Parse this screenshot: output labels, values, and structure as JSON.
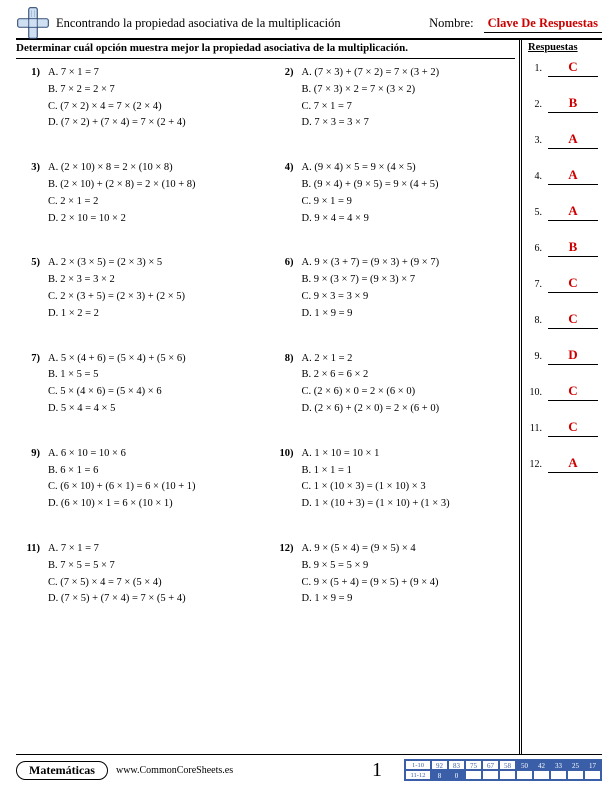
{
  "header": {
    "title": "Encontrando la propiedad asociativa de la multiplicación",
    "name_label": "Nombre:",
    "answer_key": "Clave De Respuestas"
  },
  "instruction": "Determinar cuál opción muestra mejor la propiedad asociativa de la multiplicación.",
  "sidebar_title": "Respuestas",
  "questions": [
    {
      "num": "1)",
      "opts": [
        "A. 7 × 1 = 7",
        "B. 7 × 2 = 2 × 7",
        "C. (7 × 2) × 4 = 7 × (2 × 4)",
        "D. (7 × 2) + (7 × 4) = 7 × (2 + 4)"
      ]
    },
    {
      "num": "2)",
      "opts": [
        "A. (7 × 3) + (7 × 2) = 7 × (3 + 2)",
        "B. (7 × 3) × 2 = 7 × (3 × 2)",
        "C. 7 × 1 = 7",
        "D. 7 × 3 = 3 × 7"
      ]
    },
    {
      "num": "3)",
      "opts": [
        "A. (2 × 10) × 8 = 2 × (10 × 8)",
        "B. (2 × 10) + (2 × 8) = 2 × (10 + 8)",
        "C. 2 × 1 = 2",
        "D. 2 × 10 = 10 × 2"
      ]
    },
    {
      "num": "4)",
      "opts": [
        "A. (9 × 4) × 5 = 9 × (4 × 5)",
        "B. (9 × 4) + (9 × 5) = 9 × (4 + 5)",
        "C. 9 × 1 = 9",
        "D. 9 × 4 = 4 × 9"
      ]
    },
    {
      "num": "5)",
      "opts": [
        "A. 2 × (3 × 5) = (2 × 3) × 5",
        "B. 2 × 3 = 3 × 2",
        "C. 2 × (3 + 5) = (2 × 3) + (2 × 5)",
        "D. 1 × 2 = 2"
      ]
    },
    {
      "num": "6)",
      "opts": [
        "A. 9 × (3 + 7) = (9 × 3) + (9 × 7)",
        "B. 9 × (3 × 7) = (9 × 3) × 7",
        "C. 9 × 3 = 3 × 9",
        "D. 1 × 9 = 9"
      ]
    },
    {
      "num": "7)",
      "opts": [
        "A. 5 × (4 + 6) = (5 × 4) + (5 × 6)",
        "B. 1 × 5 = 5",
        "C. 5 × (4 × 6) = (5 × 4) × 6",
        "D. 5 × 4 = 4 × 5"
      ]
    },
    {
      "num": "8)",
      "opts": [
        "A. 2 × 1 = 2",
        "B. 2 × 6 = 6 × 2",
        "C. (2 × 6) × 0 = 2 × (6 × 0)",
        "D. (2 × 6) + (2 × 0) = 2 × (6 + 0)"
      ]
    },
    {
      "num": "9)",
      "opts": [
        "A. 6 × 10 = 10 × 6",
        "B. 6 × 1 = 6",
        "C. (6 × 10) + (6 × 1) = 6 × (10 + 1)",
        "D. (6 × 10) × 1 = 6 × (10 × 1)"
      ]
    },
    {
      "num": "10)",
      "opts": [
        "A. 1 × 10 = 10 × 1",
        "B. 1 × 1 = 1",
        "C. 1 × (10 × 3) = (1 × 10) × 3",
        "D. 1 × (10 + 3) = (1 × 10) + (1 × 3)"
      ]
    },
    {
      "num": "11)",
      "opts": [
        "A. 7 × 1 = 7",
        "B. 7 × 5 = 5 × 7",
        "C. (7 × 5) × 4 = 7 × (5 × 4)",
        "D. (7 × 5) + (7 × 4) = 7 × (5 + 4)"
      ]
    },
    {
      "num": "12)",
      "opts": [
        "A. 9 × (5 × 4) = (9 × 5) × 4",
        "B. 9 × 5 = 5 × 9",
        "C. 9 × (5 + 4) = (9 × 5) + (9 × 4)",
        "D. 1 × 9 = 9"
      ]
    }
  ],
  "answers": [
    "C",
    "B",
    "A",
    "A",
    "A",
    "B",
    "C",
    "C",
    "D",
    "C",
    "C",
    "A"
  ],
  "footer": {
    "subject": "Matemáticas",
    "url": "www.CommonCoreSheets.es",
    "page": "1",
    "score_row1_label": "1-10",
    "score_row2_label": "11-12",
    "score_row1": [
      "92",
      "83",
      "75",
      "67",
      "58",
      "50",
      "42",
      "33",
      "25",
      "17"
    ],
    "score_row2": [
      "8",
      "0",
      "",
      "",
      "",
      "",
      "",
      "",
      "",
      ""
    ],
    "highlight_from": 5
  }
}
